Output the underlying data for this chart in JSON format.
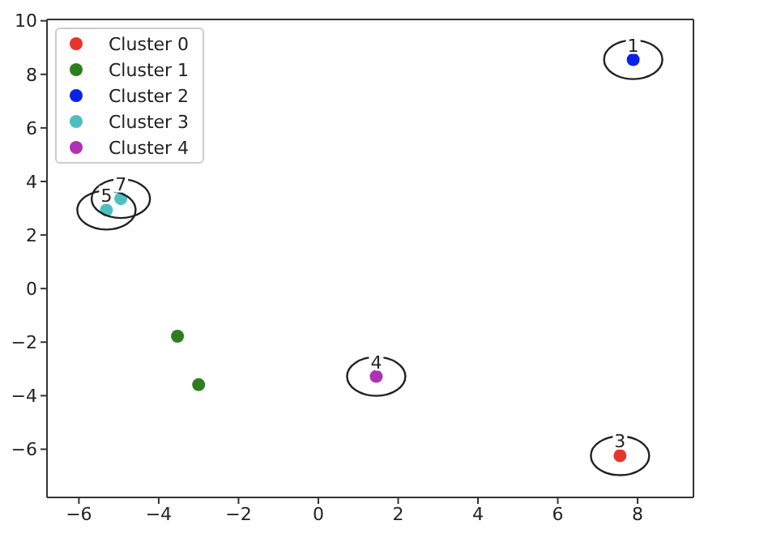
{
  "chart_data": {
    "type": "scatter",
    "marker": "circle",
    "grid": false,
    "legend": "top left",
    "xlim": [
      -6.8,
      9.4
    ],
    "xticks": [
      -6,
      -4,
      -2,
      0,
      2,
      4,
      6,
      8
    ],
    "ylim": [
      -7.8,
      10.05
    ],
    "yticks": [
      -6,
      -4,
      -2,
      0,
      2,
      4,
      6,
      8,
      10
    ],
    "series": [
      {
        "name": "Cluster 0",
        "color": "#e8352a",
        "x": [
          7.56
        ],
        "values": [
          -6.24
        ]
      },
      {
        "name": "Cluster 1",
        "color": "#2e7d1f",
        "x": [
          -3.53,
          -3.0
        ],
        "values": [
          -1.78,
          -3.59
        ]
      },
      {
        "name": "Cluster 2",
        "color": "#0a22e8",
        "x": [
          7.89
        ],
        "values": [
          8.55
        ]
      },
      {
        "name": "Cluster 3",
        "color": "#4dbfbf",
        "x": [
          -5.31,
          -4.95
        ],
        "values": [
          2.93,
          3.36
        ]
      },
      {
        "name": "Cluster 4",
        "color": "#b030b8",
        "x": [
          1.45
        ],
        "values": [
          -3.28
        ]
      }
    ],
    "annotations": [
      {
        "text": "1",
        "x": 7.89,
        "y": 8.55
      },
      {
        "text": "3",
        "x": 7.56,
        "y": -6.24
      },
      {
        "text": "4",
        "x": 1.45,
        "y": -3.28
      },
      {
        "text": "5",
        "x": -5.31,
        "y": 2.93
      },
      {
        "text": "7",
        "x": -4.95,
        "y": 3.36
      }
    ]
  }
}
